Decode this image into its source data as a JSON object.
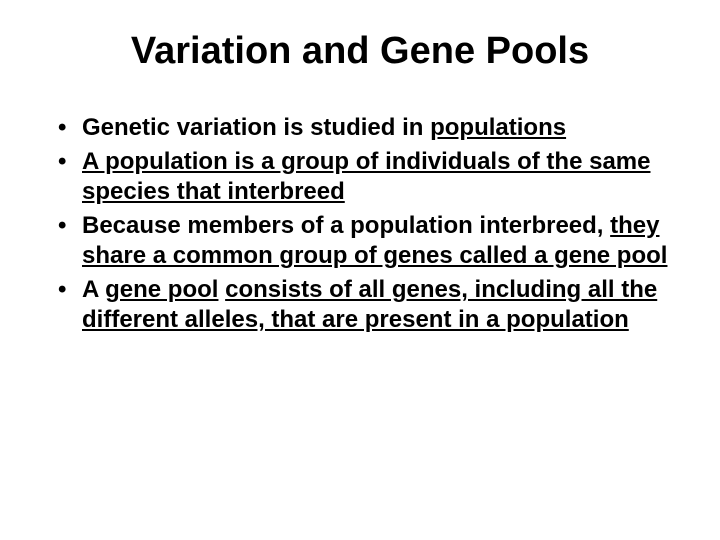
{
  "title": "Variation and Gene Pools",
  "bullet1": {
    "t1": "Genetic variation is studied in ",
    "u1": "populations"
  },
  "bullet2": {
    "u1": "A population is a group of individuals of the same species that interbreed"
  },
  "bullet3": {
    "t1": "Because members of a population interbreed",
    "t2": ", ",
    "u1": "they share a common group of genes called a gene pool"
  },
  "bullet4": {
    "t1": "A ",
    "u1": "gene pool",
    "t2": " ",
    "u2": "consists of all genes, including all the different alleles, that are present in a population"
  },
  "colors": {
    "text": "#000000",
    "background": "#ffffff"
  },
  "typography": {
    "title_fontsize": 38,
    "body_fontsize": 24,
    "font_family": "Arial",
    "font_weight": "bold"
  }
}
